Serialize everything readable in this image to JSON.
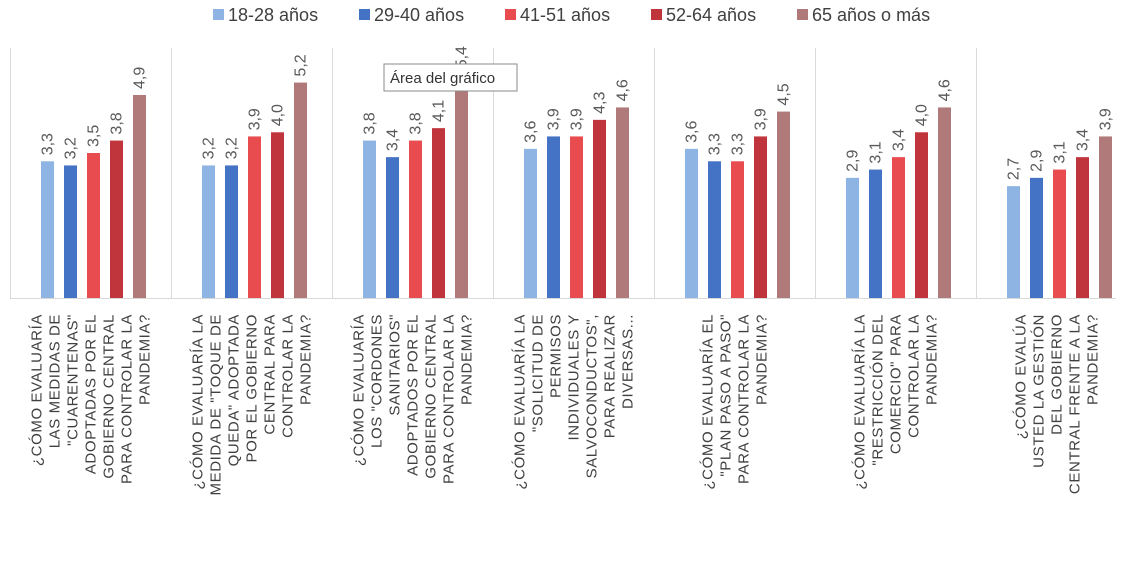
{
  "chart_data": {
    "type": "bar",
    "title": "",
    "xlabel": "",
    "ylabel": "",
    "ylim": [
      0,
      5.5
    ],
    "grid": false,
    "legend_position": "top",
    "categories": [
      [
        "¿CÓMO EVALUARÍA",
        "LAS MEDIDAS DE",
        "\"CUARENTENAS\"",
        "ADOPTADAS POR EL",
        "GOBIERNO CENTRAL",
        "PARA CONTROLAR LA",
        "PANDEMIA?"
      ],
      [
        "¿CÓMO EVALUARÍA LA",
        "MEDIDA DE \"TOQUE DE",
        "QUEDA\" ADOPTADA",
        "POR EL GOBIERNO",
        "CENTRAL PARA",
        "CONTROLAR LA",
        "PANDEMIA?"
      ],
      [
        "¿CÓMO EVALUARÍA",
        "LOS \"CORDONES",
        "SANITARIOS\"",
        "ADOPTADOS POR EL",
        "GOBIERNO CENTRAL",
        "PARA CONTROLAR LA",
        "PANDEMIA?"
      ],
      [
        "¿CÓMO EVALUARÍA LA",
        "\"SOLICITUD DE",
        "PERMISOS",
        "INDIVIDUALES Y",
        "SALVOCONDUCTOS\",",
        "PARA REALIZAR",
        "DIVERSAS..."
      ],
      [
        "¿CÓMO EVALUARÍA EL",
        "\"PLAN PASO A PASO\"",
        "PARA CONTROLAR LA",
        "PANDEMIA?"
      ],
      [
        "¿CÓMO EVALUARÍA LA",
        "\"RESTRICCIÓN DEL",
        "COMERCIO\" PARA",
        "CONTROLAR LA",
        "PANDEMIA?"
      ],
      [
        "¿CÓMO EVALÚA",
        "USTED LA GESTIÓN",
        "DEL GOBIERNO",
        "CENTRAL FRENTE A LA",
        "PANDEMIA?"
      ]
    ],
    "series": [
      {
        "name": "18-28 años",
        "color": "#8EB4E3",
        "values": [
          3.3,
          3.2,
          3.8,
          3.6,
          3.6,
          2.9,
          2.7
        ]
      },
      {
        "name": "29-40 años",
        "color": "#4472C4",
        "values": [
          3.2,
          3.2,
          3.4,
          3.9,
          3.3,
          3.1,
          2.9
        ]
      },
      {
        "name": "41-51 años",
        "color": "#E84C4F",
        "values": [
          3.5,
          3.9,
          3.8,
          3.9,
          3.3,
          3.4,
          3.1
        ]
      },
      {
        "name": "52-64 años",
        "color": "#C0343C",
        "values": [
          3.8,
          4.0,
          4.1,
          4.3,
          3.9,
          4.0,
          3.4
        ]
      },
      {
        "name": "65 años o más",
        "color": "#B07A7A",
        "values": [
          4.9,
          5.2,
          5.4,
          4.6,
          4.5,
          4.6,
          3.9
        ]
      }
    ],
    "value_labels": [
      [
        "3,3",
        "3,2",
        "3,8",
        "3,6",
        "3,6",
        "2,9",
        "2,7"
      ],
      [
        "3,2",
        "3,2",
        "3,4",
        "3,9",
        "3,3",
        "3,1",
        "2,9"
      ],
      [
        "3,5",
        "3,9",
        "3,8",
        "3,9",
        "3,3",
        "3,4",
        "3,1"
      ],
      [
        "3,8",
        "4,0",
        "4,1",
        "4,3",
        "3,9",
        "4,0",
        "3,4"
      ],
      [
        "4,9",
        "5,2",
        "5,4",
        "4,6",
        "4,5",
        "4,6",
        "3,9"
      ]
    ]
  },
  "tooltip": {
    "text": "Área del gráfico"
  }
}
